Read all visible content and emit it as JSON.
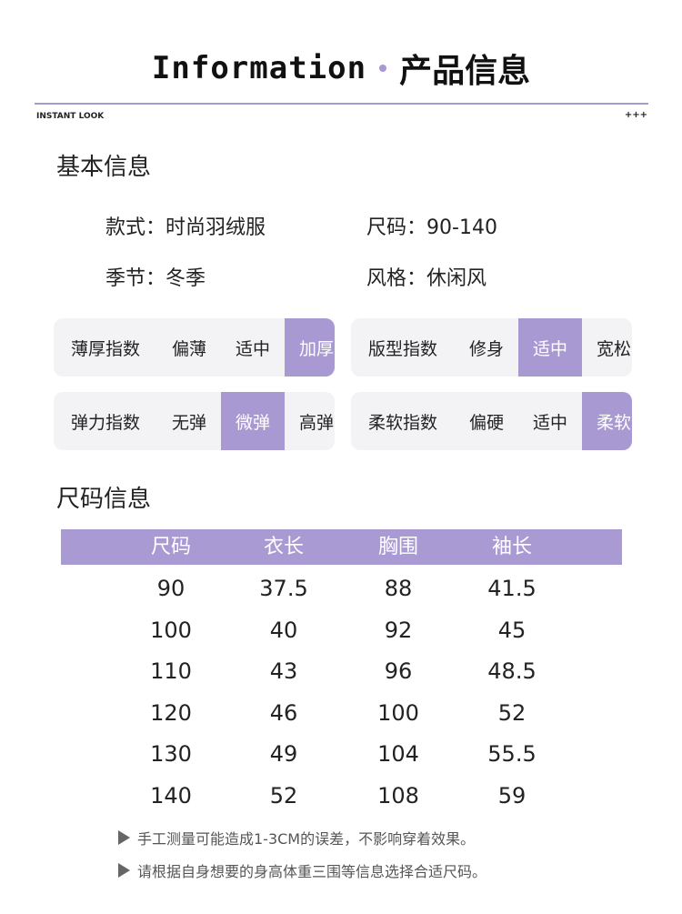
{
  "header": {
    "title_en": "Information",
    "title_cn": "产品信息",
    "sub_left": "INSTANT LOOK",
    "sub_right": "+++"
  },
  "basic": {
    "title": "基本信息",
    "items": [
      {
        "label": "款式：",
        "value": "时尚羽绒服"
      },
      {
        "label": "尺码：",
        "value": "90-140"
      },
      {
        "label": "季节：",
        "value": "冬季"
      },
      {
        "label": "风格：",
        "value": "休闲风"
      }
    ]
  },
  "metrics": [
    {
      "label": "薄厚指数",
      "options": [
        "偏薄",
        "适中",
        "加厚"
      ],
      "selected": "加厚"
    },
    {
      "label": "版型指数",
      "options": [
        "修身",
        "适中",
        "宽松"
      ],
      "selected": "适中"
    },
    {
      "label": "弹力指数",
      "options": [
        "无弹",
        "微弹",
        "高弹"
      ],
      "selected": "微弹"
    },
    {
      "label": "柔软指数",
      "options": [
        "偏硬",
        "适中",
        "柔软"
      ],
      "selected": "柔软"
    }
  ],
  "size": {
    "title": "尺码信息",
    "columns": [
      "尺码",
      "衣长",
      "胸围",
      "袖长"
    ],
    "rows": [
      [
        "90",
        "37.5",
        "88",
        "41.5"
      ],
      [
        "100",
        "40",
        "92",
        "45"
      ],
      [
        "110",
        "43",
        "96",
        "48.5"
      ],
      [
        "120",
        "46",
        "100",
        "52"
      ],
      [
        "130",
        "49",
        "104",
        "55.5"
      ],
      [
        "140",
        "52",
        "108",
        "59"
      ]
    ]
  },
  "notes": [
    "手工测量可能造成1-3CM的误差，不影响穿着效果。",
    "请根据自身想要的身高体重三围等信息选择合适尺码。"
  ],
  "colors": {
    "accent": "#a899d3",
    "panel_bg": "#f3f3f5"
  }
}
